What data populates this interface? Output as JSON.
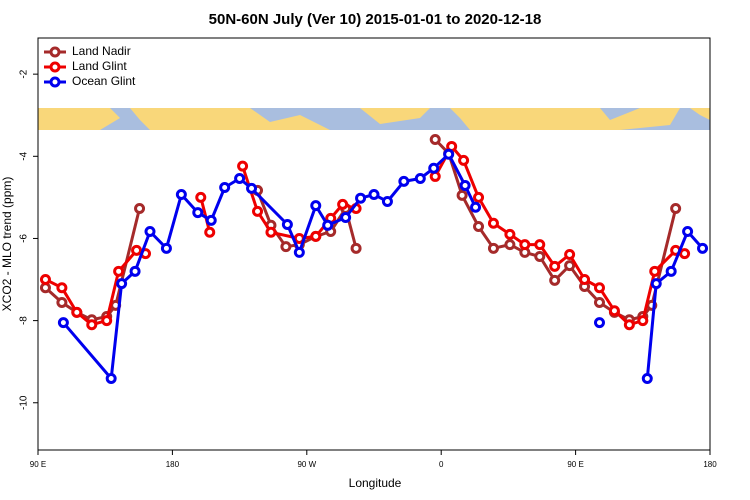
{
  "chart_data": {
    "type": "line",
    "title": "50N-60N July (Ver 10)   2015-01-01 to 2020-12-18",
    "x_label": "Longitude",
    "y_label": "XCO2 - MLO trend (ppm)",
    "xlim": [
      90,
      540
    ],
    "xticks": [
      {
        "value": 90,
        "label": "90 E"
      },
      {
        "value": 180,
        "label": "180"
      },
      {
        "value": 270,
        "label": "90 W"
      },
      {
        "value": 360,
        "label": "0"
      },
      {
        "value": 450,
        "label": "90 E"
      },
      {
        "value": 540,
        "label": "180"
      }
    ],
    "ylim": [
      -11.15,
      -1.12
    ],
    "yticks": [
      -10,
      -8,
      -6,
      -4,
      -2
    ],
    "legend": "top-left",
    "series": [
      {
        "name": "Land Nadir",
        "color": "#a52a2a",
        "x": [
          95,
          106,
          116,
          126,
          136,
          142,
          158,
          null,
          237,
          246,
          256,
          265,
          276,
          286,
          296,
          303,
          null,
          356,
          365,
          374,
          385,
          395,
          406,
          416,
          426,
          436,
          446,
          456,
          466,
          476,
          486,
          495,
          501,
          517
        ],
        "values": [
          -7.2,
          -7.56,
          -7.8,
          -7.98,
          -7.9,
          -7.63,
          -5.27,
          null,
          -4.83,
          -5.68,
          -6.2,
          -6.15,
          -5.95,
          -5.83,
          -5.27,
          -6.24,
          null,
          -3.59,
          -3.93,
          -4.95,
          -5.71,
          -6.24,
          -6.15,
          -6.34,
          -6.44,
          -7.02,
          -6.66,
          -7.17,
          -7.56,
          -7.8,
          -7.98,
          -7.9,
          -7.63,
          -5.27
        ]
      },
      {
        "name": "Land Glint",
        "color": "#ee0000",
        "x": [
          95,
          106,
          116,
          126,
          136,
          144,
          156,
          162,
          null,
          199,
          205,
          null,
          227,
          237,
          246,
          265,
          276,
          286,
          294,
          303,
          null,
          356,
          367,
          375,
          385,
          395,
          406,
          416,
          426,
          436,
          446,
          456,
          466,
          476,
          486,
          495,
          503,
          517,
          523
        ],
        "values": [
          -7.0,
          -7.2,
          -7.8,
          -8.1,
          -8.0,
          -6.8,
          -6.29,
          -6.37,
          null,
          -5.0,
          -5.85,
          null,
          -4.24,
          -5.34,
          -5.85,
          -6.0,
          -5.95,
          -5.51,
          -5.17,
          -5.27,
          null,
          -4.49,
          -3.76,
          -4.1,
          -5.0,
          -5.63,
          -5.9,
          -6.15,
          -6.15,
          -6.68,
          -6.39,
          -7.0,
          -7.2,
          -7.76,
          -8.1,
          -8.0,
          -6.8,
          -6.29,
          -6.37
        ]
      },
      {
        "name": "Ocean Glint",
        "color": "#0000ee",
        "x": [
          107,
          139,
          146,
          155,
          165,
          176,
          186,
          197,
          206,
          215,
          225,
          233,
          257,
          265,
          276,
          284,
          296,
          306,
          315,
          324,
          335,
          346,
          355,
          365,
          376,
          383,
          null,
          466,
          null,
          498,
          504,
          514,
          525,
          535
        ],
        "values": [
          -8.05,
          -9.41,
          -7.1,
          -6.8,
          -5.83,
          -6.24,
          -4.93,
          -5.37,
          -5.56,
          -4.76,
          -4.54,
          -4.78,
          -5.66,
          -6.34,
          -5.2,
          -5.68,
          -5.49,
          -5.02,
          -4.93,
          -5.1,
          -4.61,
          -4.54,
          -4.29,
          -3.95,
          -4.71,
          -5.24,
          null,
          -8.05,
          null,
          -9.41,
          -7.1,
          -6.8,
          -5.83,
          -6.24
        ]
      }
    ]
  }
}
